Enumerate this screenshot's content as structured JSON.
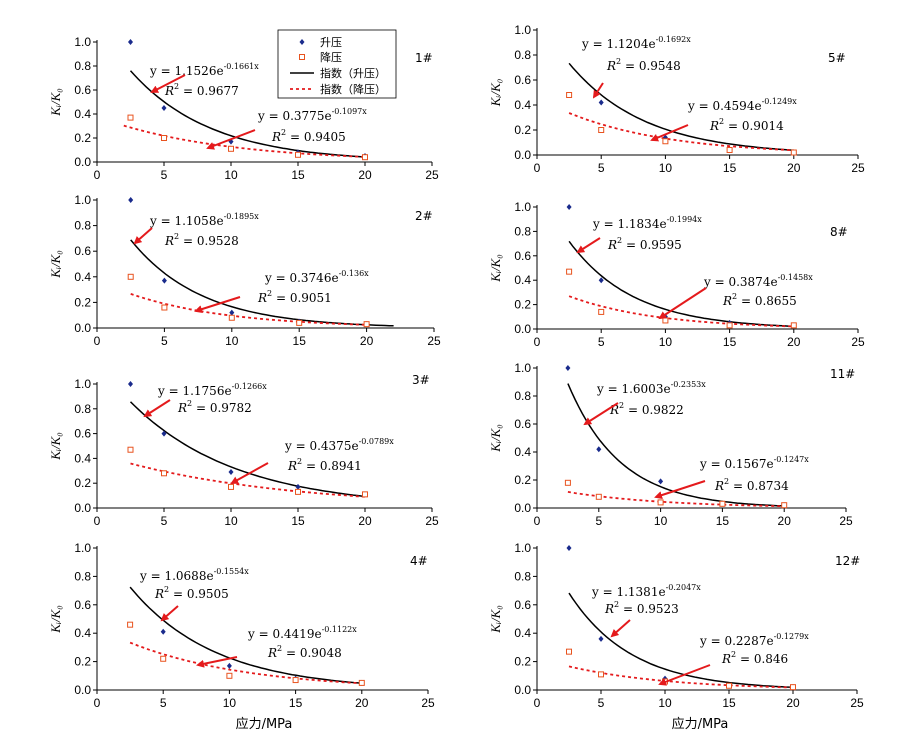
{
  "figure": {
    "xaxis_label": "应力/MPa",
    "legend": {
      "entries": [
        "升压",
        "降压",
        "指数（升压）",
        "指数（降压）"
      ]
    },
    "colors": {
      "rise_marker": "#1a2b8c",
      "fall_marker": "#e8531f",
      "rise_fit": "#000000",
      "fall_fit": "#e41a1c",
      "arrow": "#e41a1c"
    }
  },
  "chart_data": [
    {
      "type": "scatter",
      "id": "1#",
      "ylabel": "Kᵢ/K₀",
      "xlim": [
        0,
        25
      ],
      "ylim": [
        0,
        1.0
      ],
      "x_ticks": [
        "0",
        "5",
        "10",
        "15",
        "20",
        "25"
      ],
      "y_ticks": [
        "0.0",
        "0.2",
        "0.4",
        "0.6",
        "0.8",
        "1.0"
      ],
      "series": [
        {
          "name": "升压",
          "x": [
            2.5,
            5,
            10,
            15,
            20
          ],
          "y": [
            1.0,
            0.45,
            0.17,
            0.08,
            0.05
          ]
        },
        {
          "name": "降压",
          "x": [
            2.5,
            5,
            10,
            15,
            20
          ],
          "y": [
            0.37,
            0.2,
            0.11,
            0.06,
            0.04
          ]
        }
      ],
      "fits": [
        {
          "name": "指数（升压）",
          "a": 1.1526,
          "b": 0.1661,
          "x_range": [
            2.5,
            20
          ],
          "equation_prefix": "y = 1.1526e",
          "exponent": "-0.1661x",
          "r2": "= 0.9677"
        },
        {
          "name": "指数（降压）",
          "a": 0.3775,
          "b": 0.1097,
          "x_range": [
            2,
            20
          ],
          "equation_prefix": "y = 0.3775e",
          "exponent": "-0.1097x",
          "r2": "= 0.9405"
        }
      ]
    },
    {
      "type": "scatter",
      "id": "2#",
      "ylabel": "Kᵢ/K₀",
      "xlim": [
        0,
        25
      ],
      "ylim": [
        0,
        1.0
      ],
      "x_ticks": [
        "0",
        "5",
        "10",
        "15",
        "20",
        "25"
      ],
      "y_ticks": [
        "0.0",
        "0.2",
        "0.4",
        "0.6",
        "0.8",
        "1.0"
      ],
      "series": [
        {
          "name": "升压",
          "x": [
            2.5,
            5,
            10,
            15,
            20
          ],
          "y": [
            1.0,
            0.37,
            0.12,
            0.05,
            0.03
          ]
        },
        {
          "name": "降压",
          "x": [
            2.5,
            5,
            10,
            15,
            20
          ],
          "y": [
            0.4,
            0.16,
            0.08,
            0.04,
            0.03
          ]
        }
      ],
      "fits": [
        {
          "name": "指数（升压）",
          "a": 1.1058,
          "b": 0.1895,
          "x_range": [
            2.5,
            22
          ],
          "equation_prefix": "y = 1.1058e",
          "exponent": "-0.1895x",
          "r2": "= 0.9528"
        },
        {
          "name": "指数（降压）",
          "a": 0.3746,
          "b": 0.136,
          "x_range": [
            2.5,
            20
          ],
          "equation_prefix": "y = 0.3746e",
          "exponent": "-0.136x",
          "r2": "= 0.9051"
        }
      ]
    },
    {
      "type": "scatter",
      "id": "3#",
      "ylabel": "Kᵢ/K₀",
      "xlim": [
        0,
        25
      ],
      "ylim": [
        0,
        1.0
      ],
      "x_ticks": [
        "0",
        "5",
        "10",
        "15",
        "20",
        "25"
      ],
      "y_ticks": [
        "0.0",
        "0.2",
        "0.4",
        "0.6",
        "0.8",
        "1.0"
      ],
      "series": [
        {
          "name": "升压",
          "x": [
            2.5,
            5,
            10,
            15,
            20
          ],
          "y": [
            1.0,
            0.6,
            0.29,
            0.17,
            0.11
          ]
        },
        {
          "name": "降压",
          "x": [
            2.5,
            5,
            10,
            15,
            20
          ],
          "y": [
            0.47,
            0.28,
            0.17,
            0.13,
            0.11
          ]
        }
      ],
      "fits": [
        {
          "name": "指数（升压）",
          "a": 1.1756,
          "b": 0.1266,
          "x_range": [
            2.5,
            20
          ],
          "equation_prefix": "y = 1.1756e",
          "exponent": "-0.1266x",
          "r2": "= 0.9782"
        },
        {
          "name": "指数（降压）",
          "a": 0.4375,
          "b": 0.0789,
          "x_range": [
            2.5,
            20
          ],
          "equation_prefix": "y = 0.4375e",
          "exponent": "-0.0789x",
          "r2": "= 0.8941"
        }
      ]
    },
    {
      "type": "scatter",
      "id": "4#",
      "ylabel": "Kᵢ/K₀",
      "xlim": [
        0,
        25
      ],
      "ylim": [
        0,
        1.0
      ],
      "x_ticks": [
        "0",
        "5",
        "10",
        "15",
        "20",
        "25"
      ],
      "y_ticks": [
        "0.0",
        "0.2",
        "0.4",
        "0.6",
        "0.8",
        "1.0"
      ],
      "series": [
        {
          "name": "升压",
          "x": [
            5,
            10,
            15,
            20
          ],
          "y": [
            0.41,
            0.17,
            0.08,
            0.05
          ]
        },
        {
          "name": "降压",
          "x": [
            2.5,
            5,
            10,
            15,
            20
          ],
          "y": [
            0.46,
            0.22,
            0.1,
            0.07,
            0.05
          ]
        }
      ],
      "fits": [
        {
          "name": "指数（升压）",
          "a": 1.0688,
          "b": 0.1554,
          "x_range": [
            2.5,
            20
          ],
          "equation_prefix": "y = 1.0688e",
          "exponent": "-0.1554x",
          "r2": "= 0.9505"
        },
        {
          "name": "指数（降压）",
          "a": 0.4419,
          "b": 0.1122,
          "x_range": [
            2.5,
            20
          ],
          "equation_prefix": "y = 0.4419e",
          "exponent": "-0.1122x",
          "r2": "= 0.9048"
        }
      ]
    },
    {
      "type": "scatter",
      "id": "5#",
      "ylabel": "Kᵢ/K₀",
      "xlim": [
        0,
        25
      ],
      "ylim": [
        0,
        1.0
      ],
      "x_ticks": [
        "0",
        "5",
        "10",
        "15",
        "20",
        "25"
      ],
      "y_ticks": [
        "0.0",
        "0.2",
        "0.4",
        "0.6",
        "0.8",
        "1.0"
      ],
      "series": [
        {
          "name": "升压",
          "x": [
            5,
            10,
            15,
            20
          ],
          "y": [
            0.42,
            0.14,
            0.04,
            0.02
          ]
        },
        {
          "name": "降压",
          "x": [
            2.5,
            5,
            10,
            15,
            20
          ],
          "y": [
            0.48,
            0.2,
            0.11,
            0.04,
            0.02
          ]
        }
      ],
      "fits": [
        {
          "name": "指数（升压）",
          "a": 1.1204,
          "b": 0.1692,
          "x_range": [
            2.5,
            20
          ],
          "equation_prefix": "y = 1.1204e",
          "exponent": "-0.1692x",
          "r2": "= 0.9548"
        },
        {
          "name": "指数（降压）",
          "a": 0.4594,
          "b": 0.1249,
          "x_range": [
            2.5,
            20
          ],
          "equation_prefix": "y = 0.4594e",
          "exponent": "-0.1249x",
          "r2": "= 0.9014"
        }
      ]
    },
    {
      "type": "scatter",
      "id": "8#",
      "ylabel": "Kᵢ/K₀",
      "xlim": [
        0,
        25
      ],
      "ylim": [
        0,
        1.0
      ],
      "x_ticks": [
        "0",
        "5",
        "10",
        "15",
        "20",
        "25"
      ],
      "y_ticks": [
        "0.0",
        "0.2",
        "0.4",
        "0.6",
        "0.8",
        "1.0"
      ],
      "series": [
        {
          "name": "升压",
          "x": [
            2.5,
            5,
            10,
            15,
            20
          ],
          "y": [
            1.0,
            0.4,
            0.1,
            0.05,
            0.03
          ]
        },
        {
          "name": "降压",
          "x": [
            2.5,
            5,
            10,
            15,
            20
          ],
          "y": [
            0.47,
            0.14,
            0.07,
            0.03,
            0.03
          ]
        }
      ],
      "fits": [
        {
          "name": "指数（升压）",
          "a": 1.1834,
          "b": 0.1994,
          "x_range": [
            2.5,
            20
          ],
          "equation_prefix": "y = 1.1834e",
          "exponent": "-0.1994x",
          "r2": "= 0.9595"
        },
        {
          "name": "指数（降压）",
          "a": 0.3874,
          "b": 0.1458,
          "x_range": [
            2.5,
            20
          ],
          "equation_prefix": "y = 0.3874e",
          "exponent": "-0.1458x",
          "r2": "= 0.8655"
        }
      ]
    },
    {
      "type": "scatter",
      "id": "11#",
      "ylabel": "Kᵢ/K₀",
      "xlim": [
        0,
        25
      ],
      "ylim": [
        0,
        1.0
      ],
      "x_ticks": [
        "0",
        "5",
        "10",
        "15",
        "20",
        "25"
      ],
      "y_ticks": [
        "0.0",
        "0.2",
        "0.4",
        "0.6",
        "0.8",
        "1.0"
      ],
      "series": [
        {
          "name": "升压",
          "x": [
            2.5,
            5,
            10,
            15,
            20
          ],
          "y": [
            1.0,
            0.42,
            0.19,
            0.03,
            0.02
          ]
        },
        {
          "name": "降压",
          "x": [
            2.5,
            5,
            10,
            15,
            20
          ],
          "y": [
            0.18,
            0.08,
            0.04,
            0.03,
            0.02
          ]
        }
      ],
      "fits": [
        {
          "name": "指数（升压）",
          "a": 1.6003,
          "b": 0.2353,
          "x_range": [
            2.5,
            20
          ],
          "equation_prefix": "y = 1.6003e",
          "exponent": "-0.2353x",
          "r2": "= 0.9822"
        },
        {
          "name": "指数（降压）",
          "a": 0.1567,
          "b": 0.1247,
          "x_range": [
            2.5,
            20
          ],
          "equation_prefix": "y = 0.1567e",
          "exponent": "-0.1247x",
          "r2": "= 0.8734"
        }
      ]
    },
    {
      "type": "scatter",
      "id": "12#",
      "ylabel": "Kᵢ/K₀",
      "xlim": [
        0,
        25
      ],
      "ylim": [
        0,
        1.0
      ],
      "x_ticks": [
        "0",
        "5",
        "10",
        "15",
        "20",
        "25"
      ],
      "y_ticks": [
        "0.0",
        "0.2",
        "0.4",
        "0.6",
        "0.8",
        "1.0"
      ],
      "series": [
        {
          "name": "升压",
          "x": [
            2.5,
            5,
            10,
            15,
            20
          ],
          "y": [
            1.0,
            0.36,
            0.08,
            0.03,
            0.02
          ]
        },
        {
          "name": "降压",
          "x": [
            2.5,
            5,
            10,
            15,
            20
          ],
          "y": [
            0.27,
            0.11,
            0.06,
            0.03,
            0.02
          ]
        }
      ],
      "fits": [
        {
          "name": "指数（升压）",
          "a": 1.1381,
          "b": 0.2047,
          "x_range": [
            2.5,
            20
          ],
          "equation_prefix": "y = 1.1381e",
          "exponent": "-0.2047x",
          "r2": "= 0.9523"
        },
        {
          "name": "指数（降压）",
          "a": 0.2287,
          "b": 0.1279,
          "x_range": [
            2.5,
            20
          ],
          "equation_prefix": "y = 0.2287e",
          "exponent": "-0.1279x",
          "r2": "= 0.846"
        }
      ]
    }
  ]
}
